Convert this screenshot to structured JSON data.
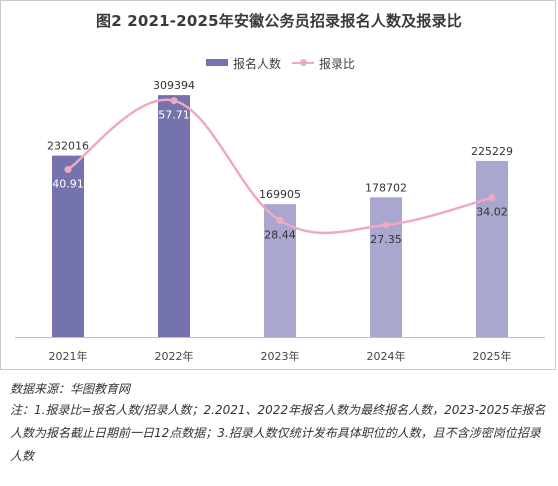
{
  "chart_data": {
    "type": "bar",
    "title": "图2 2021-2025年安徽公务员招录报名人数及报录比",
    "categories": [
      "2021年",
      "2022年",
      "2023年",
      "2024年",
      "2025年"
    ],
    "series": [
      {
        "name": "报名人数",
        "kind": "bar",
        "values": [
          232016,
          309394,
          169905,
          178702,
          225229
        ]
      },
      {
        "name": "报录比",
        "kind": "line",
        "values": [
          40.91,
          57.71,
          28.44,
          27.35,
          34.02
        ]
      }
    ],
    "colors": {
      "bar_dark": "#7573ad",
      "bar_light": "#a9a7cf",
      "line": "#f0a9c1"
    },
    "bar_ylim": [
      0,
      330000
    ],
    "line_ylim": [
      0,
      63
    ],
    "legend_position": "top-center",
    "grid": false
  },
  "footer": {
    "source": "数据来源：华图教育网",
    "note": "注：1.报录比=报名人数/招录人数；2.2021、2022年报名人数为最终报名人数，2023-2025年报名人数为报名截止日期前一日12点数据；3.招录人数仅统计发布具体职位的人数，且不含涉密岗位招录人数"
  }
}
